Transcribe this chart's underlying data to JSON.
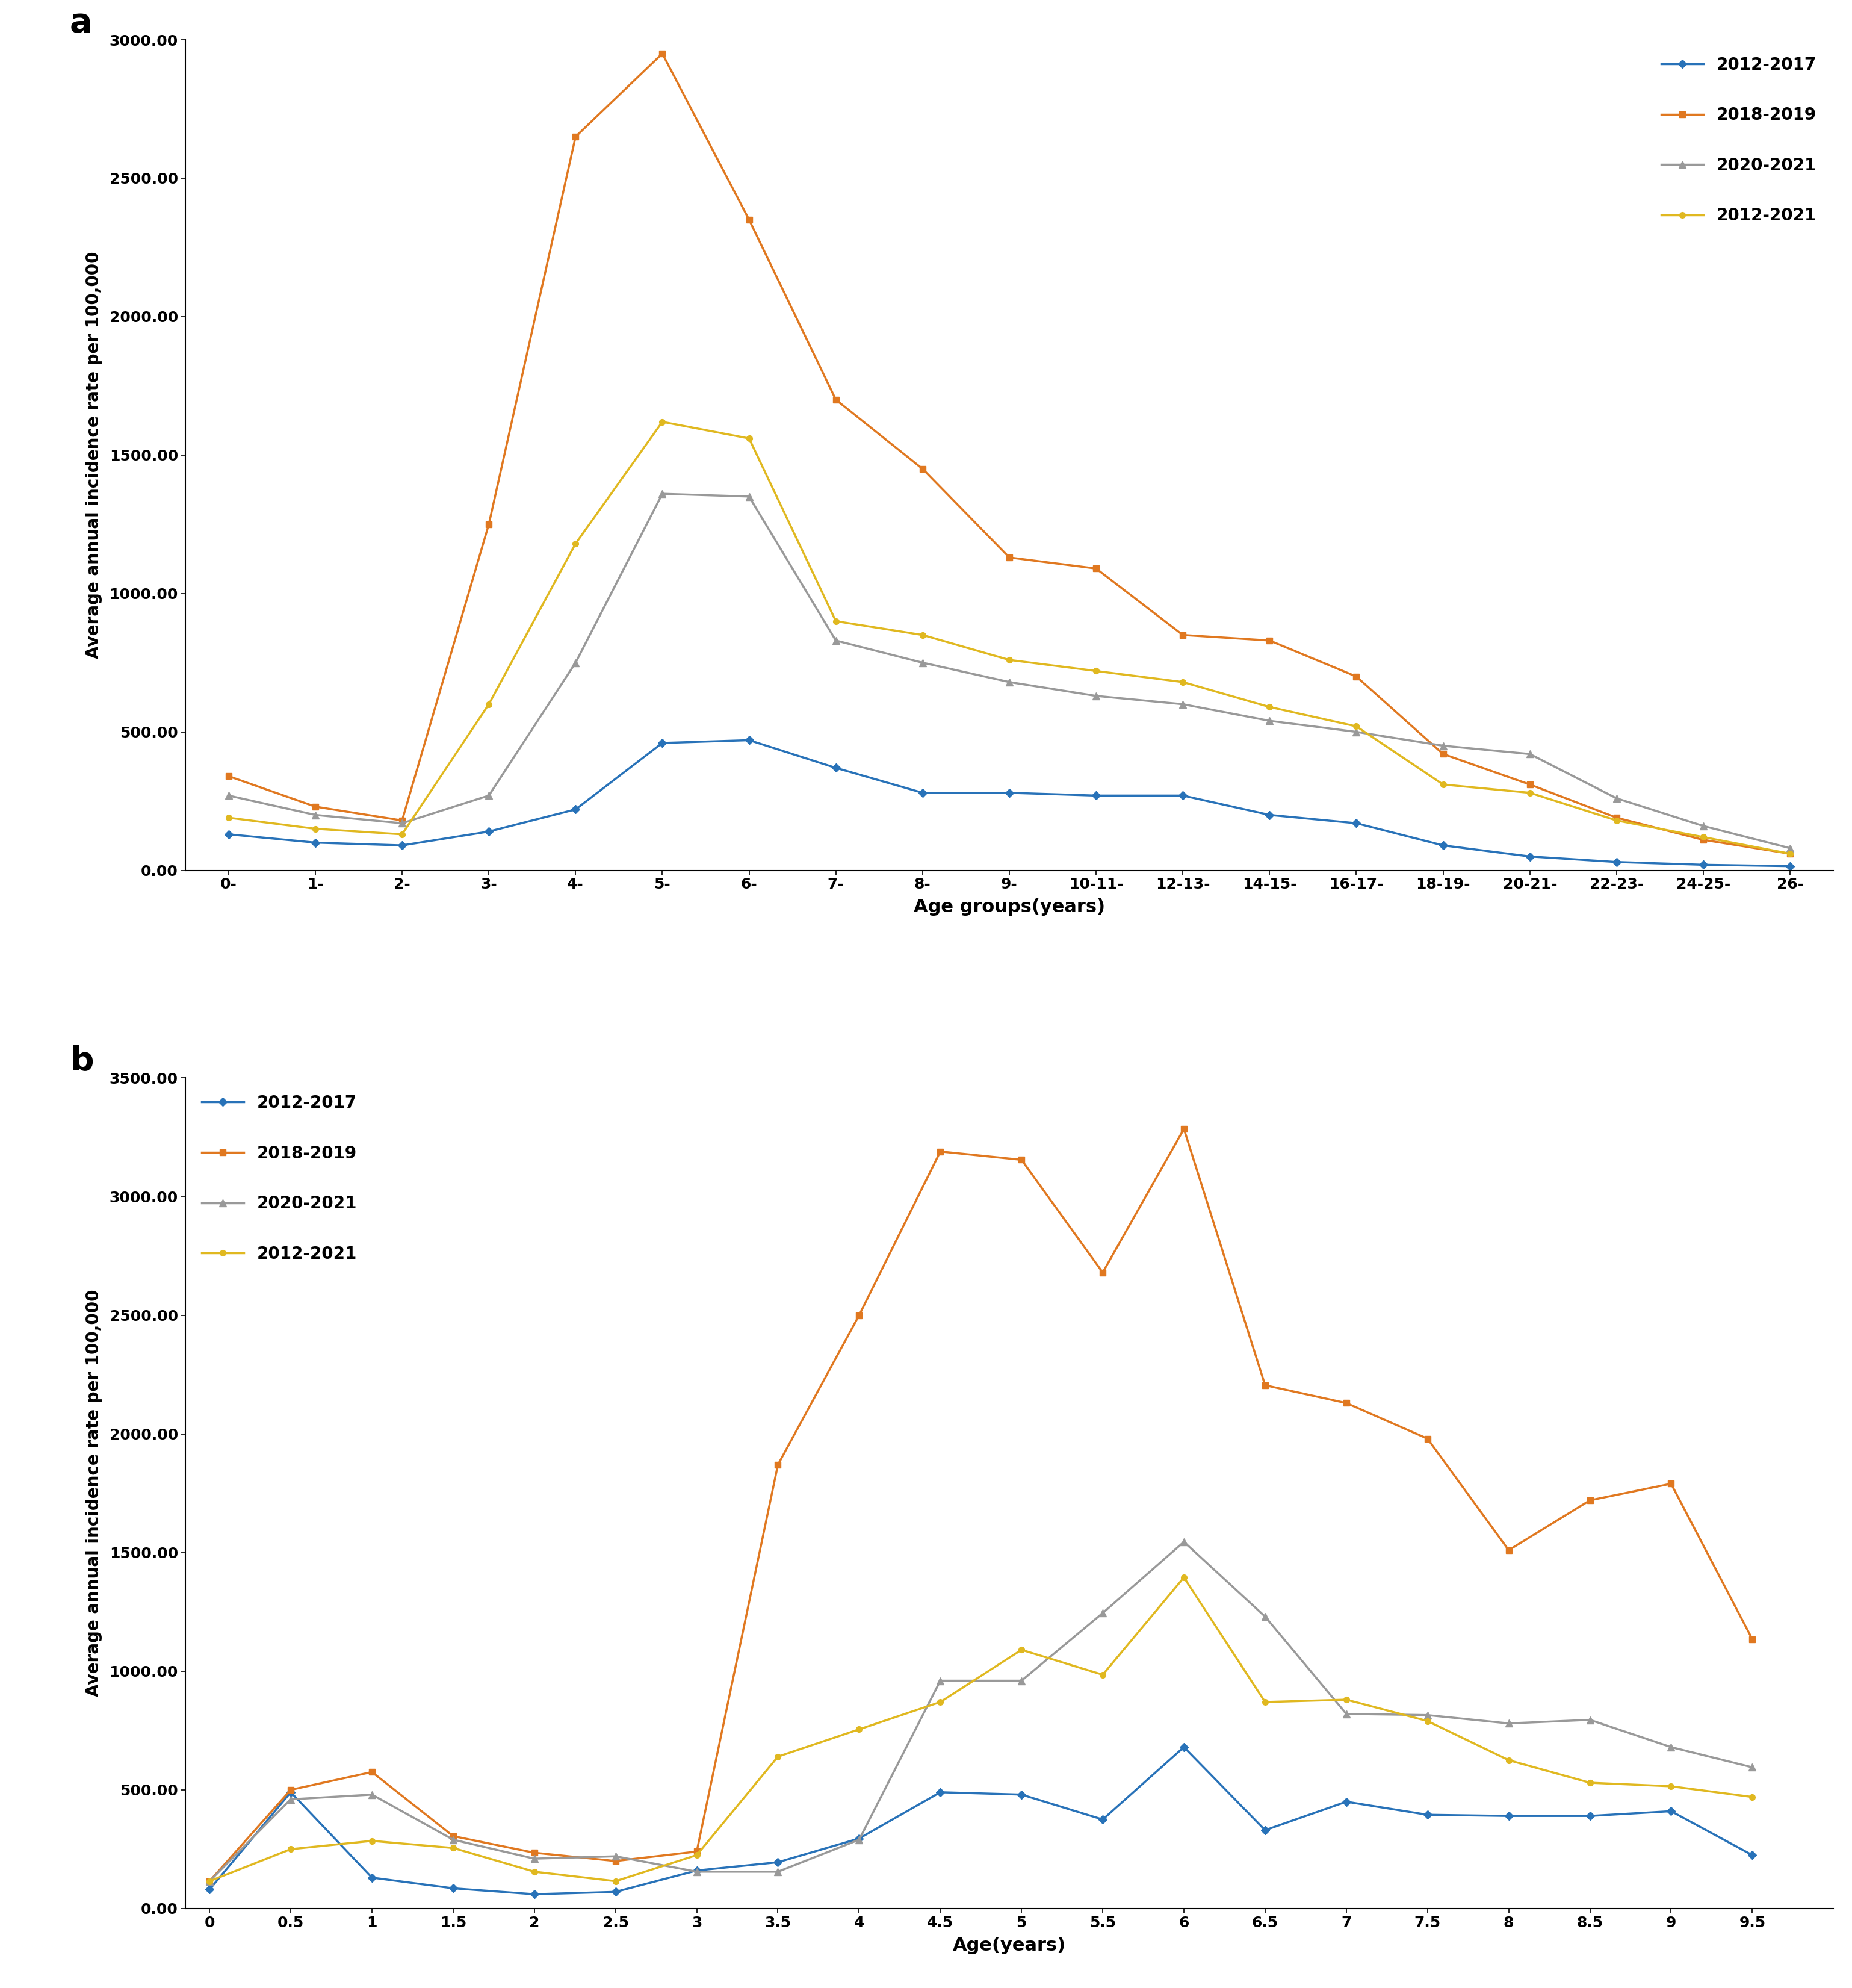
{
  "panel_a": {
    "xlabel": "Age groups(years)",
    "ylabel": "Average annual incidence rate per 100,000",
    "ylim": [
      0,
      3000
    ],
    "yticks": [
      0,
      500.0,
      1000.0,
      1500.0,
      2000.0,
      2500.0,
      3000.0
    ],
    "xtick_labels": [
      "0-",
      "1-",
      "2-",
      "3-",
      "4-",
      "5-",
      "6-",
      "7-",
      "8-",
      "9-",
      "10-11-",
      "12-13-",
      "14-15-",
      "16-17-",
      "18-19-",
      "20-21-",
      "22-23-",
      "24-25-",
      "26-"
    ],
    "series": {
      "2012-2017": {
        "color": "#2872b8",
        "marker": "D",
        "markersize": 7,
        "values": [
          130,
          100,
          90,
          140,
          220,
          460,
          470,
          370,
          280,
          280,
          270,
          270,
          200,
          170,
          90,
          50,
          30,
          20,
          15
        ]
      },
      "2018-2019": {
        "color": "#e07820",
        "marker": "s",
        "markersize": 7,
        "values": [
          340,
          230,
          180,
          1250,
          2650,
          2950,
          2350,
          1700,
          1450,
          1130,
          1090,
          850,
          830,
          700,
          420,
          310,
          190,
          110,
          60
        ]
      },
      "2020-2021": {
        "color": "#999999",
        "marker": "^",
        "markersize": 8,
        "values": [
          270,
          200,
          170,
          270,
          750,
          1360,
          1350,
          830,
          750,
          680,
          630,
          600,
          540,
          500,
          450,
          420,
          260,
          160,
          80
        ]
      },
      "2012-2021": {
        "color": "#e0b820",
        "marker": "o",
        "markersize": 7,
        "values": [
          190,
          150,
          130,
          600,
          1180,
          1620,
          1560,
          900,
          850,
          760,
          720,
          680,
          590,
          520,
          310,
          280,
          180,
          120,
          60
        ]
      }
    }
  },
  "panel_b": {
    "xlabel": "Age(years)",
    "ylabel": "Average annual incidence rate per 100,000",
    "ylim": [
      0,
      3500
    ],
    "yticks": [
      0,
      500.0,
      1000.0,
      1500.0,
      2000.0,
      2500.0,
      3000.0,
      3500.0
    ],
    "xtick_values": [
      0,
      0.5,
      1.0,
      1.5,
      2.0,
      2.5,
      3.0,
      3.5,
      4.0,
      4.5,
      5.0,
      5.5,
      6.0,
      6.5,
      7.0,
      7.5,
      8.0,
      8.5,
      9.0,
      9.5
    ],
    "xtick_labels": [
      "0",
      "0.5",
      "1",
      "1.5",
      "2",
      "2.5",
      "3",
      "3.5",
      "4",
      "4.5",
      "5",
      "5.5",
      "6",
      "6.5",
      "7",
      "7.5",
      "8",
      "8.5",
      "9",
      "9.5"
    ],
    "series": {
      "2012-2017": {
        "color": "#2872b8",
        "marker": "D",
        "markersize": 7,
        "values": [
          80,
          490,
          130,
          85,
          60,
          70,
          160,
          195,
          295,
          490,
          480,
          375,
          680,
          330,
          450,
          395,
          390,
          390,
          410,
          225
        ]
      },
      "2018-2019": {
        "color": "#e07820",
        "marker": "s",
        "markersize": 7,
        "values": [
          115,
          500,
          575,
          305,
          235,
          200,
          240,
          1870,
          2500,
          3190,
          3155,
          2680,
          3285,
          2205,
          2130,
          1980,
          1510,
          1720,
          1790,
          1135
        ]
      },
      "2020-2021": {
        "color": "#999999",
        "marker": "^",
        "markersize": 8,
        "values": [
          115,
          460,
          480,
          290,
          210,
          220,
          155,
          155,
          290,
          960,
          960,
          1245,
          1545,
          1230,
          820,
          815,
          780,
          795,
          680,
          595
        ]
      },
      "2012-2021": {
        "color": "#e0b820",
        "marker": "o",
        "markersize": 7,
        "values": [
          115,
          250,
          285,
          255,
          155,
          115,
          225,
          640,
          755,
          870,
          1090,
          985,
          1395,
          870,
          880,
          790,
          625,
          530,
          515,
          470
        ]
      }
    }
  },
  "legend_order": [
    "2012-2017",
    "2018-2019",
    "2020-2021",
    "2012-2021"
  ]
}
